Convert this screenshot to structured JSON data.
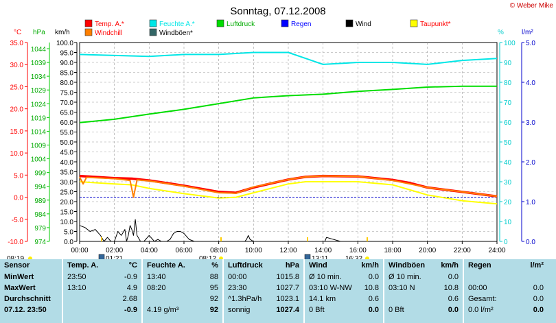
{
  "title": "Sonntag, 07.12.2008",
  "copyright": "© Weber Mike",
  "colors": {
    "temp": "#ff0000",
    "humidity": "#00e6e6",
    "pressure": "#00dd00",
    "rain": "#0000ff",
    "wind": "#000000",
    "dewpoint": "#ffff00",
    "windchill": "#ff7f00",
    "gusts": "#336666",
    "table_bg": "#b2dce6"
  },
  "legend": [
    {
      "label": "Temp. A.*",
      "color": "#ff0000",
      "text_color": "#ff0000"
    },
    {
      "label": "Feuchte A.*",
      "color": "#00e6e6",
      "text_color": "#00e6e6"
    },
    {
      "label": "Luftdruck",
      "color": "#00dd00",
      "text_color": "#00aa00"
    },
    {
      "label": "Regen",
      "color": "#0000ff",
      "text_color": "#0000ff"
    },
    {
      "label": "Wind",
      "color": "#000000",
      "text_color": "#000000"
    },
    {
      "label": "Taupunkt*",
      "color": "#ffff00",
      "text_color": "#ff0000"
    },
    {
      "label": "Windchill",
      "color": "#ff7f00",
      "text_color": "#ff0000"
    },
    {
      "label": "Windböen*",
      "color": "#336666",
      "text_color": "#000000"
    }
  ],
  "units": {
    "temp": "°C",
    "pressure": "hPa",
    "wind": "km/h",
    "humidity": "%",
    "rain": "l/m²"
  },
  "sun_events": {
    "sunrise": "08:19",
    "sunset": "16:32",
    "moon1": "01:21",
    "noon": "08:12",
    "moon2": "13:11"
  },
  "chart_data": {
    "type": "line",
    "x_ticks": [
      "00:00",
      "02:00",
      "04:00",
      "06:00",
      "08:00",
      "10:00",
      "12:00",
      "14:00",
      "16:00",
      "18:00",
      "20:00",
      "22:00",
      "24:00"
    ],
    "xlim": [
      0,
      24
    ],
    "axes": {
      "temp": {
        "ticks": [
          "35.0",
          "30.0",
          "25.0",
          "20.0",
          "15.0",
          "10.0",
          "5.0",
          "0.0",
          "-5.0",
          "-10.0"
        ],
        "ylim": [
          -10,
          35
        ]
      },
      "pressure": {
        "ticks": [
          "1044",
          "1039",
          "1034",
          "1029",
          "1024",
          "1019",
          "1014",
          "1009",
          "1004",
          "999",
          "994",
          "989",
          "984",
          "979",
          "974"
        ],
        "ylim": [
          974,
          1044
        ]
      },
      "wind": {
        "ticks": [
          "100.0",
          "95.0",
          "90.0",
          "85.0",
          "80.0",
          "75.0",
          "70.0",
          "65.0",
          "60.0",
          "55.0",
          "50.0",
          "45.0",
          "40.0",
          "35.0",
          "30.0",
          "25.0",
          "20.0",
          "15.0",
          "10.0",
          "5.0",
          "0.0"
        ],
        "ylim": [
          0,
          100
        ]
      },
      "humidity": {
        "ticks": [
          "100",
          "90",
          "80",
          "70",
          "60",
          "50",
          "40",
          "30",
          "20",
          "10",
          "0"
        ],
        "ylim": [
          0,
          100
        ]
      },
      "rain": {
        "ticks": [
          "5.0",
          "4.0",
          "3.0",
          "2.0",
          "1.0",
          "0.0"
        ],
        "ylim": [
          0,
          5
        ]
      }
    },
    "series": [
      {
        "name": "Feuchte A.*",
        "axis": "humidity",
        "color": "#00e6e6",
        "x": [
          0,
          4,
          6,
          8,
          10,
          12,
          13,
          14,
          16,
          18,
          20,
          21,
          22,
          24
        ],
        "y": [
          94,
          93,
          94,
          94,
          95,
          95,
          92,
          89,
          90,
          90,
          89,
          90,
          91,
          92
        ]
      },
      {
        "name": "Luftdruck",
        "axis": "pressure",
        "color": "#00dd00",
        "x": [
          0,
          2,
          4,
          6,
          8,
          10,
          12,
          14,
          16,
          18,
          20,
          22,
          24
        ],
        "y": [
          1015.8,
          1017,
          1018.8,
          1020.5,
          1022.5,
          1024.5,
          1025.3,
          1025.8,
          1026.8,
          1027.5,
          1028.3,
          1028.6,
          1028.6
        ]
      },
      {
        "name": "Taupunkt*",
        "axis": "temp",
        "color": "#ffff00",
        "x": [
          0,
          2,
          3,
          4,
          6,
          8,
          9,
          10,
          12,
          13,
          14,
          16,
          18,
          20,
          22,
          24
        ],
        "y": [
          3.5,
          3.0,
          2.8,
          2.0,
          0.8,
          -0.2,
          0.0,
          1.0,
          3.0,
          3.5,
          3.5,
          3.5,
          2.8,
          0.5,
          -0.8,
          -1.5
        ]
      },
      {
        "name": "Temp. A.*",
        "axis": "temp",
        "color": "#ff0000",
        "x": [
          0,
          2,
          3,
          4,
          6,
          8,
          9,
          10,
          12,
          13,
          14,
          16,
          18,
          19,
          20,
          22,
          24
        ],
        "y": [
          4.8,
          4.3,
          4.2,
          3.8,
          2.6,
          1.2,
          1.0,
          2.2,
          4.0,
          4.6,
          4.8,
          4.7,
          3.9,
          3.2,
          2.2,
          1.2,
          0.2
        ]
      },
      {
        "name": "Windchill",
        "axis": "temp",
        "color": "#ff7f00",
        "x": [
          0,
          0.2,
          0.4,
          2,
          2.9,
          3.1,
          3.3,
          4,
          6,
          8,
          9,
          10,
          12,
          13,
          14,
          16,
          18,
          20,
          22,
          24
        ],
        "y": [
          4.6,
          3.0,
          4.5,
          4.2,
          3.8,
          0.0,
          3.9,
          3.7,
          2.5,
          1.0,
          0.9,
          2.3,
          4.0,
          4.6,
          4.8,
          4.7,
          3.8,
          2.2,
          1.2,
          0.2
        ]
      },
      {
        "name": "Wind",
        "axis": "wind",
        "color": "#000000",
        "x": [
          0,
          0.3,
          0.6,
          0.9,
          1.2,
          1.4,
          1.6,
          1.8,
          2.0,
          2.2,
          2.4,
          2.6,
          2.7,
          2.8,
          2.9,
          3.0,
          3.1,
          3.2,
          3.3,
          3.5,
          3.7,
          4.0,
          4.3,
          4.5,
          4.7,
          5.0,
          5.2,
          5.4,
          5.6,
          5.8,
          6.0,
          6.3,
          6.6,
          7.0,
          7.5,
          8.0,
          8.5,
          9.0,
          9.5,
          9.6,
          9.7,
          9.8,
          10,
          14,
          14.1,
          14.2,
          15,
          18,
          24
        ],
        "y": [
          8,
          7,
          5,
          6,
          3,
          0,
          2,
          0,
          0,
          5,
          3,
          6,
          0,
          3,
          8,
          6,
          3,
          11,
          3,
          0,
          0,
          3,
          0,
          1,
          0,
          0,
          1,
          4,
          5,
          5,
          4,
          1,
          0,
          0,
          0,
          0,
          0,
          0,
          0,
          1,
          3,
          1,
          0,
          0,
          0,
          2,
          0,
          0,
          0
        ]
      }
    ]
  },
  "table": {
    "columns": [
      {
        "h1": "Sensor",
        "h2": "",
        "rows": [
          "MinWert",
          "MaxWert",
          "Durchschnitt",
          "07.12. 23:50"
        ]
      },
      {
        "h1": "Temp. A.",
        "h2": "°C",
        "rows": [
          [
            "23:50",
            "-0.9"
          ],
          [
            "13:10",
            "4.9"
          ],
          [
            "",
            "2.68"
          ],
          [
            "",
            "-0.9"
          ]
        ]
      },
      {
        "h1": "Feuchte A.",
        "h2": "%",
        "rows": [
          [
            "13:40",
            "88"
          ],
          [
            "08:20",
            "95"
          ],
          [
            "",
            "92"
          ],
          [
            "4.19 g/m³",
            "92"
          ]
        ]
      },
      {
        "h1": "Luftdruck",
        "h2": "hPa",
        "rows": [
          [
            "00:00",
            "1015.8"
          ],
          [
            "23:30",
            "1027.7"
          ],
          [
            "^1.3hPa/h",
            "1023.1"
          ],
          [
            "sonnig",
            "1027.4"
          ]
        ]
      },
      {
        "h1": "Wind",
        "h2": "km/h",
        "rows": [
          [
            "Ø 10 min.",
            "0.0"
          ],
          [
            "03:10   W-NW",
            "10.8"
          ],
          [
            "14.1 km",
            "0.6"
          ],
          [
            "0 Bft",
            "0.0"
          ]
        ]
      },
      {
        "h1": "Windböen",
        "h2": "km/h",
        "rows": [
          [
            "Ø 10 min.",
            "0.0"
          ],
          [
            "03:10   N",
            "10.8"
          ],
          [
            "",
            "0.6"
          ],
          [
            "0 Bft",
            "0.0"
          ]
        ]
      },
      {
        "h1": "Regen",
        "h2": "l/m²",
        "rows": [
          [
            "",
            ""
          ],
          [
            "00:00",
            "0.0"
          ],
          [
            "Gesamt:",
            "0.0"
          ],
          [
            "0.0 l/m²",
            "0.0"
          ]
        ]
      }
    ]
  }
}
